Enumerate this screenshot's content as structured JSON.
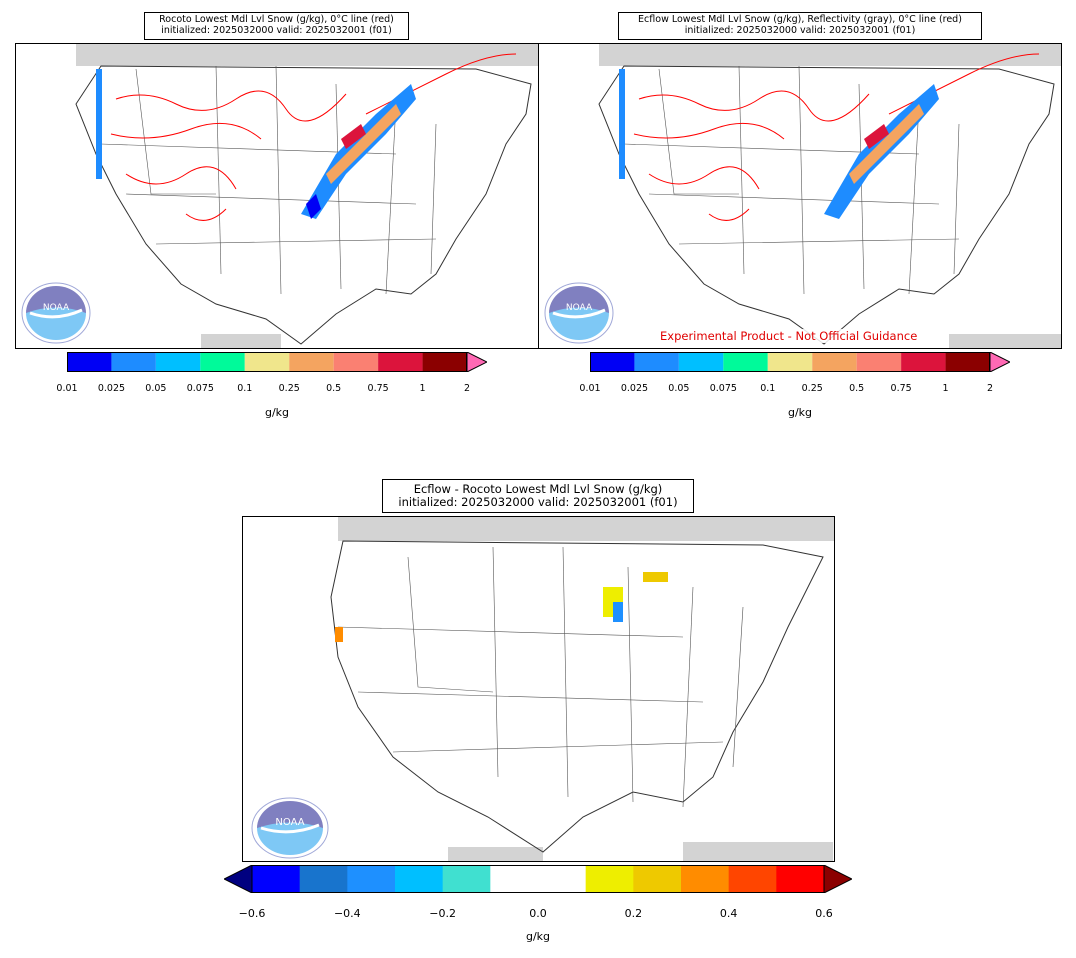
{
  "panels": [
    {
      "id": "top-left",
      "title_line1": "Rocoto Lowest Mdl Lvl Snow (g/kg), 0°C line (red)",
      "title_line2": "initialized: 2025032000 valid: 2025032001 (f01)",
      "watermark": ""
    },
    {
      "id": "top-right",
      "title_line1": "Ecflow Lowest Mdl Lvl Snow (g/kg), Reflectivity (gray), 0°C line (red)",
      "title_line2": "initialized: 2025032000 valid: 2025032001 (f01)",
      "watermark": "Experimental Product - Not Official Guidance"
    },
    {
      "id": "bottom",
      "title_line1": "Ecflow - Rocoto Lowest Mdl Lvl Snow (g/kg)",
      "title_line2": "initialized: 2025032000 valid: 2025032001 (f01)",
      "watermark": ""
    }
  ],
  "logo": {
    "text": "NOAA",
    "ring_text": "NATIONAL OCEANIC AND ATMOSPHERIC ADMINISTRATION · U.S. DEPARTMENT OF COMMERCE",
    "icon": "noaa-logo-icon"
  },
  "colorbar_snow": {
    "unit": "g/kg",
    "ticks": [
      "0.01",
      "0.025",
      "0.05",
      "0.075",
      "0.1",
      "0.25",
      "0.5",
      "0.75",
      "1",
      "2"
    ],
    "colors": [
      "#0000f5",
      "#1e8cff",
      "#00bfff",
      "#00fa9a",
      "#f0e68c",
      "#f4a460",
      "#fa8072",
      "#dc143c",
      "#8b0000"
    ],
    "extend_max_color": "#ff69b4"
  },
  "colorbar_diff": {
    "unit": "g/kg",
    "ticks": [
      "−0.6",
      "−0.4",
      "−0.2",
      "0.0",
      "0.2",
      "0.4",
      "0.6"
    ],
    "colors": [
      "#0000ff",
      "#1874cd",
      "#1e90ff",
      "#00bfff",
      "#40e0d0",
      "#ffffff",
      "#ffffff",
      "#eeee00",
      "#eec900",
      "#ff8c00",
      "#ff4500",
      "#ff0000"
    ],
    "extend_min_color": "#000080",
    "extend_max_color": "#8b0000"
  },
  "colors": {
    "zero_c_line": "#ff0000",
    "state_lines": "#333333",
    "land_mask": "#d3d3d3"
  }
}
